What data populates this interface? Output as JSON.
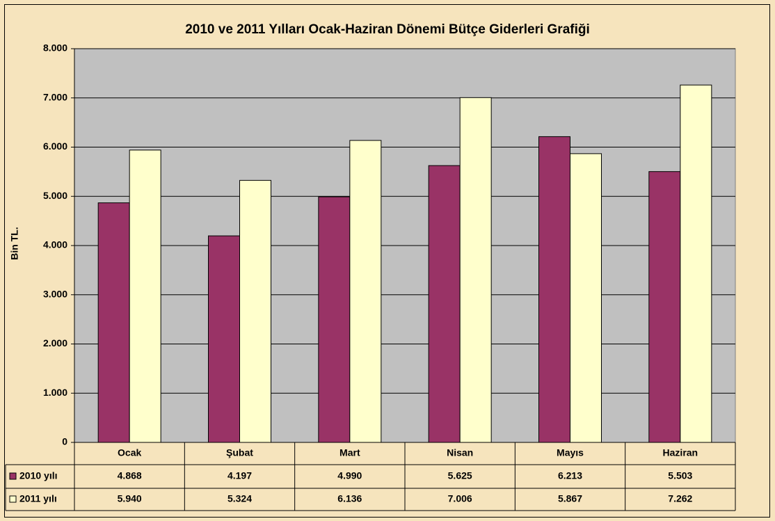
{
  "chart_data": {
    "type": "bar",
    "title": "2010 ve 2011 Yılları Ocak-Haziran Dönemi Bütçe Giderleri Grafiği",
    "y_label": "Bin TL.",
    "categories": [
      "Ocak",
      "Şubat",
      "Mart",
      "Nisan",
      "Mayıs",
      "Haziran"
    ],
    "series": [
      {
        "name": "2010 yılı",
        "color": "#993366",
        "values": [
          4868,
          4197,
          4990,
          5625,
          6213,
          5503
        ],
        "value_labels": [
          "4.868",
          "4.197",
          "4.990",
          "5.625",
          "6.213",
          "5.503"
        ]
      },
      {
        "name": "2011 yılı",
        "color": "#ffffcc",
        "values": [
          5940,
          5324,
          6136,
          7006,
          5867,
          7262
        ],
        "value_labels": [
          "5.940",
          "5.324",
          "6.136",
          "7.006",
          "5.867",
          "7.262"
        ]
      }
    ],
    "ylim": [
      0,
      8000
    ],
    "yticks": [
      0,
      {
        "value": 1000,
        "label": "1.000"
      },
      {
        "value": 2000,
        "label": "2.000"
      },
      {
        "value": 3000,
        "label": "3.000"
      },
      {
        "value": 4000,
        "label": "4.000"
      },
      {
        "value": 5000,
        "label": "5.000"
      },
      {
        "value": 6000,
        "label": "6.000"
      },
      {
        "value": 7000,
        "label": "7.000"
      },
      {
        "value": 8000,
        "label": "8.000"
      }
    ],
    "grid": true
  }
}
